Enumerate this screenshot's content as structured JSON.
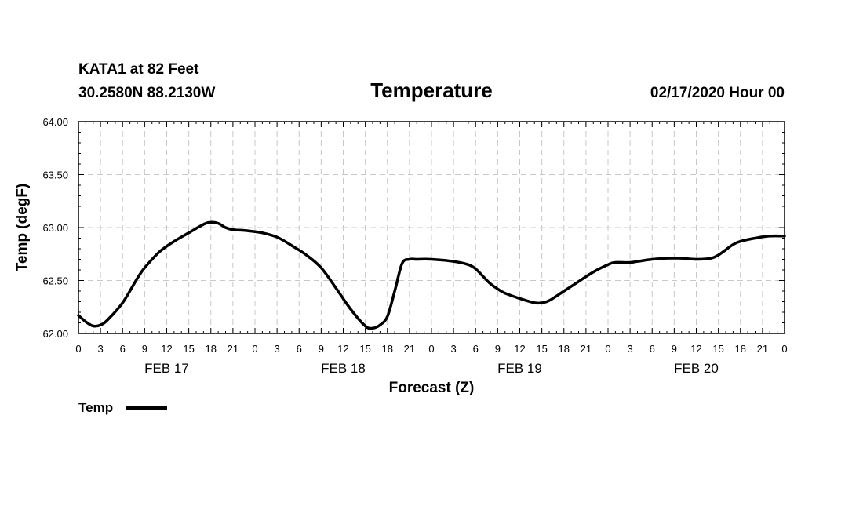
{
  "header": {
    "station": "KATA1 at 82 Feet",
    "coords": "30.2580N 88.2130W",
    "date": "02/17/2020 Hour 00"
  },
  "chart_data": {
    "type": "line",
    "title": "Temperature",
    "xlabel": "Forecast (Z)",
    "ylabel": "Temp (degF)",
    "x_unit": "forecast hour",
    "xlim": [
      0,
      96
    ],
    "ylim": [
      62.0,
      64.0
    ],
    "y_ticks": [
      "62.00",
      "62.50",
      "63.00",
      "63.50",
      "64.00"
    ],
    "x_ticks": [
      {
        "x": 0,
        "label": "0"
      },
      {
        "x": 3,
        "label": "3"
      },
      {
        "x": 6,
        "label": "6"
      },
      {
        "x": 9,
        "label": "9"
      },
      {
        "x": 12,
        "label": "12"
      },
      {
        "x": 15,
        "label": "15"
      },
      {
        "x": 18,
        "label": "18"
      },
      {
        "x": 21,
        "label": "21"
      },
      {
        "x": 24,
        "label": "0"
      },
      {
        "x": 27,
        "label": "3"
      },
      {
        "x": 30,
        "label": "6"
      },
      {
        "x": 33,
        "label": "9"
      },
      {
        "x": 36,
        "label": "12"
      },
      {
        "x": 39,
        "label": "15"
      },
      {
        "x": 42,
        "label": "18"
      },
      {
        "x": 45,
        "label": "21"
      },
      {
        "x": 48,
        "label": "0"
      },
      {
        "x": 51,
        "label": "3"
      },
      {
        "x": 54,
        "label": "6"
      },
      {
        "x": 57,
        "label": "9"
      },
      {
        "x": 60,
        "label": "12"
      },
      {
        "x": 63,
        "label": "15"
      },
      {
        "x": 66,
        "label": "18"
      },
      {
        "x": 69,
        "label": "21"
      },
      {
        "x": 72,
        "label": "0"
      },
      {
        "x": 75,
        "label": "3"
      },
      {
        "x": 78,
        "label": "6"
      },
      {
        "x": 81,
        "label": "9"
      },
      {
        "x": 84,
        "label": "12"
      },
      {
        "x": 87,
        "label": "15"
      },
      {
        "x": 90,
        "label": "18"
      },
      {
        "x": 93,
        "label": "21"
      },
      {
        "x": 96,
        "label": "0"
      }
    ],
    "day_labels": [
      {
        "x": 12,
        "label": "FEB 17"
      },
      {
        "x": 36,
        "label": "FEB 18"
      },
      {
        "x": 60,
        "label": "FEB 19"
      },
      {
        "x": 84,
        "label": "FEB 20"
      }
    ],
    "grid": true,
    "legend": {
      "position": "bottom-left",
      "entries": [
        "Temp"
      ]
    },
    "series": [
      {
        "name": "Temp",
        "color": "#000000",
        "x": [
          0,
          1,
          2,
          3,
          4,
          6,
          8,
          9,
          11,
          13,
          15,
          17,
          18,
          19,
          20,
          21,
          23,
          25,
          27,
          29,
          31,
          33,
          35,
          37,
          39,
          40,
          41,
          42,
          43,
          44,
          45,
          46,
          48,
          51,
          53,
          54,
          55,
          56,
          57,
          58,
          60,
          62,
          63,
          64,
          66,
          68,
          70,
          72,
          73,
          75,
          76,
          78,
          80,
          82,
          84,
          86,
          87,
          88,
          89,
          90,
          92,
          94,
          96
        ],
        "values": [
          62.17,
          62.11,
          62.07,
          62.08,
          62.13,
          62.29,
          62.52,
          62.62,
          62.77,
          62.87,
          62.95,
          63.03,
          63.05,
          63.04,
          63.0,
          62.98,
          62.97,
          62.95,
          62.91,
          62.83,
          62.74,
          62.62,
          62.43,
          62.23,
          62.07,
          62.05,
          62.08,
          62.16,
          62.4,
          62.66,
          62.7,
          62.7,
          62.7,
          62.68,
          62.65,
          62.61,
          62.54,
          62.47,
          62.42,
          62.38,
          62.33,
          62.29,
          62.29,
          62.31,
          62.4,
          62.49,
          62.58,
          62.65,
          62.67,
          62.67,
          62.68,
          62.7,
          62.71,
          62.71,
          62.7,
          62.71,
          62.74,
          62.79,
          62.84,
          62.87,
          62.9,
          62.92,
          62.92
        ]
      }
    ]
  }
}
